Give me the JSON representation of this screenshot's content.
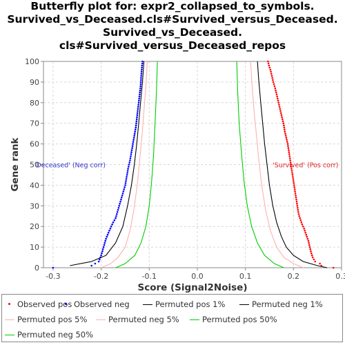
{
  "chart_data": {
    "type": "line",
    "title": [
      "Butterfly plot for: expr2_collapsed_to_symbols.",
      "Survived_vs_Deceased.cls#Survived_versus_Deceased.",
      "Survived_vs_Deceased.",
      "cls#Survived_versus_Deceased_repos"
    ],
    "xlabel": "Score (Signal2Noise)",
    "ylabel": "Gene rank",
    "xlim": [
      -0.32,
      0.3
    ],
    "ylim": [
      0,
      100
    ],
    "xticks": [
      "-0.3",
      "-0.2",
      "-0.1",
      "0.0",
      "0.1",
      "0.2",
      "0.3"
    ],
    "yticks": [
      "0",
      "10",
      "20",
      "30",
      "40",
      "50",
      "60",
      "70",
      "80",
      "90",
      "100"
    ],
    "grid": true,
    "annotations": [
      {
        "text": "'Deceased' (Neg corr)",
        "x": -0.265,
        "y": 50,
        "color": "#3333cc"
      },
      {
        "text": "'Survived' (Pos corr)",
        "x": 0.225,
        "y": 50,
        "color": "#dd2222"
      }
    ],
    "series": [
      {
        "name": "Observed pos",
        "style": "dots",
        "color": "#ff0000",
        "points": [
          [
            0.283,
            0
          ],
          [
            0.258,
            1
          ],
          [
            0.255,
            2
          ],
          [
            0.245,
            3
          ],
          [
            0.24,
            5
          ],
          [
            0.236,
            8
          ],
          [
            0.233,
            11
          ],
          [
            0.231,
            13
          ],
          [
            0.228,
            15
          ],
          [
            0.225,
            17
          ],
          [
            0.222,
            19
          ],
          [
            0.218,
            21
          ],
          [
            0.215,
            23
          ],
          [
            0.212,
            25
          ],
          [
            0.21,
            27
          ],
          [
            0.208,
            30
          ],
          [
            0.206,
            33
          ],
          [
            0.204,
            36
          ],
          [
            0.202,
            39
          ],
          [
            0.2,
            42
          ],
          [
            0.198,
            45
          ],
          [
            0.196,
            48
          ],
          [
            0.194,
            51
          ],
          [
            0.192,
            54
          ],
          [
            0.19,
            57
          ],
          [
            0.188,
            60
          ],
          [
            0.185,
            63
          ],
          [
            0.182,
            66
          ],
          [
            0.18,
            69
          ],
          [
            0.177,
            72
          ],
          [
            0.174,
            75
          ],
          [
            0.171,
            78
          ],
          [
            0.168,
            81
          ],
          [
            0.165,
            84
          ],
          [
            0.162,
            87
          ],
          [
            0.158,
            90
          ],
          [
            0.155,
            93
          ],
          [
            0.152,
            96
          ],
          [
            0.149,
            98
          ],
          [
            0.147,
            100
          ]
        ]
      },
      {
        "name": "Observed neg",
        "style": "dots",
        "color": "#0000ff",
        "points": [
          [
            -0.3,
            0
          ],
          [
            -0.22,
            1
          ],
          [
            -0.205,
            3
          ],
          [
            -0.2,
            6
          ],
          [
            -0.195,
            10
          ],
          [
            -0.19,
            14
          ],
          [
            -0.183,
            18
          ],
          [
            -0.175,
            22
          ],
          [
            -0.17,
            24
          ],
          [
            -0.165,
            28
          ],
          [
            -0.16,
            32
          ],
          [
            -0.155,
            36
          ],
          [
            -0.15,
            40
          ],
          [
            -0.147,
            44
          ],
          [
            -0.144,
            48
          ],
          [
            -0.14,
            52
          ],
          [
            -0.137,
            56
          ],
          [
            -0.134,
            60
          ],
          [
            -0.131,
            64
          ],
          [
            -0.128,
            68
          ],
          [
            -0.126,
            72
          ],
          [
            -0.124,
            76
          ],
          [
            -0.122,
            80
          ],
          [
            -0.12,
            84
          ],
          [
            -0.118,
            88
          ],
          [
            -0.117,
            92
          ],
          [
            -0.116,
            95
          ],
          [
            -0.115,
            98
          ],
          [
            -0.114,
            100
          ]
        ]
      },
      {
        "name": "Permuted pos 1%",
        "style": "line",
        "color": "#000000",
        "points": [
          [
            0.27,
            0
          ],
          [
            0.25,
            1
          ],
          [
            0.22,
            3
          ],
          [
            0.2,
            6
          ],
          [
            0.185,
            10
          ],
          [
            0.175,
            15
          ],
          [
            0.165,
            22
          ],
          [
            0.157,
            30
          ],
          [
            0.15,
            40
          ],
          [
            0.145,
            50
          ],
          [
            0.14,
            60
          ],
          [
            0.136,
            70
          ],
          [
            0.132,
            80
          ],
          [
            0.128,
            90
          ],
          [
            0.125,
            100
          ]
        ]
      },
      {
        "name": "Permuted neg 1%",
        "style": "line",
        "color": "#000000",
        "points": [
          [
            -0.265,
            1
          ],
          [
            -0.22,
            3
          ],
          [
            -0.19,
            6
          ],
          [
            -0.17,
            12
          ],
          [
            -0.155,
            20
          ],
          [
            -0.145,
            30
          ],
          [
            -0.137,
            40
          ],
          [
            -0.131,
            50
          ],
          [
            -0.126,
            60
          ],
          [
            -0.122,
            70
          ],
          [
            -0.118,
            80
          ],
          [
            -0.114,
            90
          ],
          [
            -0.111,
            100
          ]
        ]
      },
      {
        "name": "Permuted pos 5%",
        "style": "line",
        "color": "#ffb0b0",
        "points": [
          [
            0.22,
            0
          ],
          [
            0.2,
            2
          ],
          [
            0.18,
            5
          ],
          [
            0.165,
            10
          ],
          [
            0.152,
            18
          ],
          [
            0.142,
            28
          ],
          [
            0.134,
            40
          ],
          [
            0.128,
            52
          ],
          [
            0.123,
            64
          ],
          [
            0.118,
            76
          ],
          [
            0.114,
            88
          ],
          [
            0.111,
            100
          ]
        ]
      },
      {
        "name": "Permuted neg 5%",
        "style": "line",
        "color": "#ffb0b0",
        "points": [
          [
            -0.2,
            0
          ],
          [
            -0.18,
            2
          ],
          [
            -0.165,
            5
          ],
          [
            -0.15,
            10
          ],
          [
            -0.14,
            18
          ],
          [
            -0.132,
            28
          ],
          [
            -0.125,
            40
          ],
          [
            -0.12,
            52
          ],
          [
            -0.115,
            64
          ],
          [
            -0.111,
            76
          ],
          [
            -0.107,
            88
          ],
          [
            -0.104,
            100
          ]
        ]
      },
      {
        "name": "Permuted pos 50%",
        "style": "line",
        "color": "#00cc00",
        "points": [
          [
            0.18,
            0
          ],
          [
            0.16,
            2
          ],
          [
            0.14,
            6
          ],
          [
            0.125,
            12
          ],
          [
            0.113,
            20
          ],
          [
            0.104,
            30
          ],
          [
            0.097,
            42
          ],
          [
            0.092,
            55
          ],
          [
            0.087,
            70
          ],
          [
            0.084,
            85
          ],
          [
            0.082,
            100
          ]
        ]
      },
      {
        "name": "Permuted neg 50%",
        "style": "line",
        "color": "#00cc00",
        "points": [
          [
            -0.17,
            0
          ],
          [
            -0.15,
            2
          ],
          [
            -0.13,
            6
          ],
          [
            -0.117,
            12
          ],
          [
            -0.107,
            20
          ],
          [
            -0.1,
            30
          ],
          [
            -0.095,
            42
          ],
          [
            -0.091,
            55
          ],
          [
            -0.088,
            70
          ],
          [
            -0.085,
            85
          ],
          [
            -0.083,
            100
          ]
        ]
      }
    ]
  },
  "legend": {
    "items": [
      {
        "label": "Observed pos",
        "kind": "dot",
        "color": "#ff0000"
      },
      {
        "label": "Observed neg",
        "kind": "dot",
        "color": "#0000ff"
      },
      {
        "label": "Permuted pos 1%",
        "kind": "line",
        "color": "#000000"
      },
      {
        "label": "Permuted neg 1%",
        "kind": "line",
        "color": "#000000"
      },
      {
        "label": "Permuted pos 5%",
        "kind": "line",
        "color": "#ffb0b0"
      },
      {
        "label": "Permuted neg 5%",
        "kind": "line",
        "color": "#ffb0b0"
      },
      {
        "label": "Permuted pos 50%",
        "kind": "line",
        "color": "#00cc00"
      },
      {
        "label": "Permuted neg 50%",
        "kind": "line",
        "color": "#00cc00"
      }
    ]
  }
}
